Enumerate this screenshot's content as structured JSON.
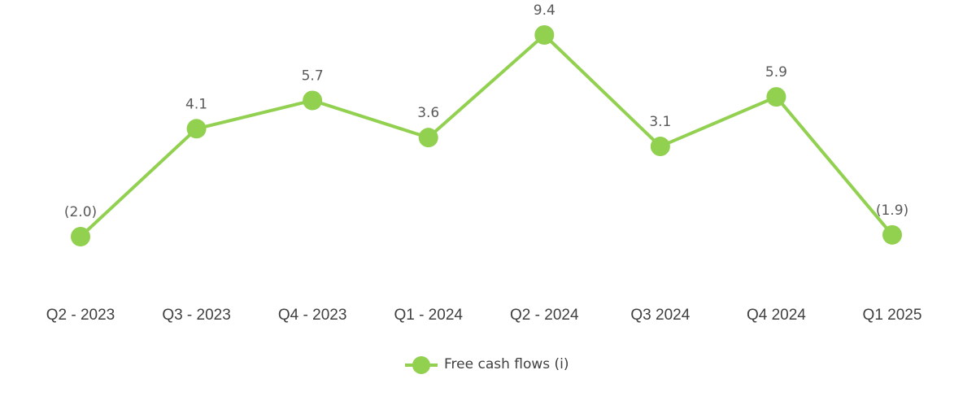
{
  "chart_data": {
    "type": "line",
    "categories": [
      "Q2 - 2023",
      "Q3 - 2023",
      "Q4 - 2023",
      "Q1 - 2024",
      "Q2 - 2024",
      "Q3 2024",
      "Q4 2024",
      "Q1 2025"
    ],
    "series": [
      {
        "name": "Free cash flows (i)",
        "color": "#92d050",
        "values": [
          -2.0,
          4.1,
          5.7,
          3.6,
          9.4,
          3.1,
          5.9,
          -1.9
        ],
        "value_labels": [
          "(2.0)",
          "4.1",
          "5.7",
          "3.6",
          "9.4",
          "3.1",
          "5.9",
          "(1.9)"
        ]
      }
    ],
    "legend": "bottom"
  }
}
